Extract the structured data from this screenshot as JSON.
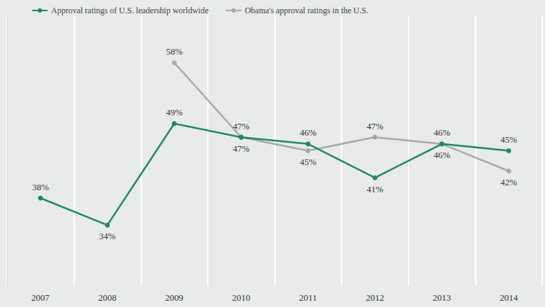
{
  "chart_data": {
    "type": "line",
    "categories": [
      "2007",
      "2008",
      "2009",
      "2010",
      "2011",
      "2012",
      "2013",
      "2014"
    ],
    "series": [
      {
        "name": "Approval ratings of U.S. leadership worldwide",
        "color": "#1f8a5b",
        "marker": "circle",
        "values": [
          38,
          34,
          49,
          47,
          46,
          41,
          46,
          45
        ],
        "value_labels": [
          "38%",
          "34%",
          "49%",
          "47%",
          "46%",
          "41%",
          "46%",
          "45%"
        ]
      },
      {
        "name": "Obama's approval ratings in the U.S.",
        "color": "#a9a9a9",
        "marker": "circle",
        "values": [
          null,
          null,
          58,
          47,
          45,
          47,
          46,
          42
        ],
        "value_labels": [
          null,
          null,
          "58%",
          "47%",
          "45%",
          "47%",
          "46%",
          "42%"
        ]
      }
    ],
    "ylim": [
      25,
      65
    ],
    "grid": true,
    "legend": "top-left",
    "data_labels": true,
    "tick_labels": "x"
  }
}
